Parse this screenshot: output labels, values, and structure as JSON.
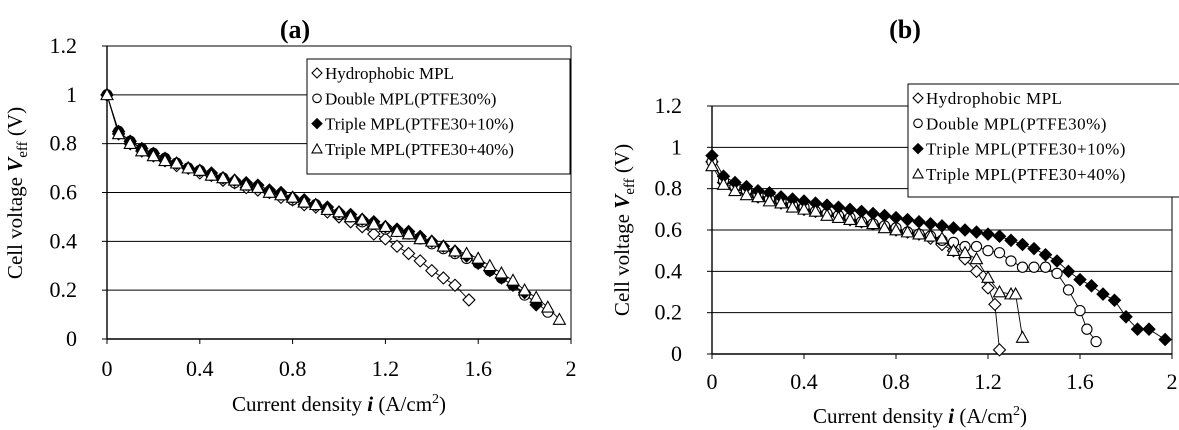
{
  "chart_data": [
    {
      "type": "line",
      "title": "(a)",
      "xlabel": "Current density i (A/cm²)",
      "ylabel": "Cell voltage V_eff (V)",
      "xlabel_parts": {
        "pre": "Current density ",
        "var": "i",
        "post": " (A/cm",
        "sup": "2",
        "end": ")"
      },
      "ylabel_parts": {
        "pre": "Cell voltage ",
        "var": "V",
        "sub": "eff",
        "post": " (V)"
      },
      "xlim": [
        0,
        2
      ],
      "ylim": [
        0,
        1.2
      ],
      "xticks": [
        "0",
        "0.4",
        "0.8",
        "1.2",
        "1.6",
        "2"
      ],
      "yticks": [
        "0",
        "0.2",
        "0.4",
        "0.6",
        "0.8",
        "1",
        "1.2"
      ],
      "grid": "horizontal",
      "legend_position": "top-right",
      "series": [
        {
          "name": "Hydrophobic MPL",
          "marker": "diamond-open",
          "x": [
            0,
            0.05,
            0.1,
            0.15,
            0.2,
            0.25,
            0.3,
            0.35,
            0.4,
            0.45,
            0.5,
            0.55,
            0.6,
            0.65,
            0.7,
            0.75,
            0.8,
            0.85,
            0.9,
            0.95,
            1.0,
            1.05,
            1.1,
            1.15,
            1.2,
            1.25,
            1.3,
            1.35,
            1.4,
            1.45,
            1.5,
            1.56
          ],
          "y": [
            1.0,
            0.84,
            0.8,
            0.77,
            0.75,
            0.73,
            0.71,
            0.7,
            0.68,
            0.67,
            0.65,
            0.64,
            0.62,
            0.61,
            0.6,
            0.58,
            0.57,
            0.55,
            0.54,
            0.52,
            0.5,
            0.48,
            0.46,
            0.43,
            0.41,
            0.38,
            0.35,
            0.32,
            0.28,
            0.25,
            0.22,
            0.16
          ]
        },
        {
          "name": "Double MPL(PTFE30%)",
          "marker": "circle-open",
          "x": [
            0,
            0.05,
            0.1,
            0.15,
            0.2,
            0.25,
            0.3,
            0.35,
            0.4,
            0.45,
            0.5,
            0.55,
            0.6,
            0.65,
            0.7,
            0.75,
            0.8,
            0.85,
            0.9,
            0.95,
            1.0,
            1.05,
            1.1,
            1.15,
            1.2,
            1.25,
            1.3,
            1.35,
            1.4,
            1.45,
            1.5,
            1.55,
            1.6,
            1.65,
            1.7,
            1.75,
            1.8,
            1.85,
            1.9
          ],
          "y": [
            1.0,
            0.85,
            0.81,
            0.78,
            0.76,
            0.74,
            0.72,
            0.7,
            0.69,
            0.67,
            0.66,
            0.64,
            0.63,
            0.62,
            0.6,
            0.59,
            0.57,
            0.56,
            0.55,
            0.53,
            0.51,
            0.5,
            0.48,
            0.47,
            0.45,
            0.44,
            0.43,
            0.41,
            0.39,
            0.37,
            0.35,
            0.33,
            0.31,
            0.28,
            0.25,
            0.22,
            0.18,
            0.15,
            0.11
          ]
        },
        {
          "name": "Triple MPL(PTFE30+10%)",
          "marker": "diamond-filled",
          "x": [
            0,
            0.05,
            0.1,
            0.15,
            0.2,
            0.25,
            0.3,
            0.35,
            0.4,
            0.45,
            0.5,
            0.55,
            0.6,
            0.65,
            0.7,
            0.75,
            0.8,
            0.85,
            0.9,
            0.95,
            1.0,
            1.05,
            1.1,
            1.15,
            1.2,
            1.25,
            1.3,
            1.35,
            1.4,
            1.45,
            1.5,
            1.55,
            1.6,
            1.65,
            1.7,
            1.75,
            1.8,
            1.85
          ],
          "y": [
            1.0,
            0.85,
            0.81,
            0.78,
            0.76,
            0.74,
            0.72,
            0.7,
            0.69,
            0.68,
            0.66,
            0.65,
            0.64,
            0.63,
            0.61,
            0.6,
            0.58,
            0.57,
            0.55,
            0.54,
            0.52,
            0.51,
            0.49,
            0.48,
            0.46,
            0.45,
            0.44,
            0.42,
            0.4,
            0.38,
            0.36,
            0.34,
            0.31,
            0.28,
            0.25,
            0.22,
            0.19,
            0.14
          ]
        },
        {
          "name": "Triple MPL(PTFE30+40%)",
          "marker": "triangle-open",
          "x": [
            0,
            0.05,
            0.1,
            0.15,
            0.2,
            0.25,
            0.3,
            0.35,
            0.4,
            0.45,
            0.5,
            0.55,
            0.6,
            0.65,
            0.7,
            0.75,
            0.8,
            0.85,
            0.9,
            0.95,
            1.0,
            1.05,
            1.1,
            1.15,
            1.2,
            1.25,
            1.3,
            1.35,
            1.4,
            1.45,
            1.5,
            1.55,
            1.6,
            1.65,
            1.7,
            1.75,
            1.8,
            1.85,
            1.9,
            1.95
          ],
          "y": [
            1.0,
            0.84,
            0.8,
            0.77,
            0.75,
            0.73,
            0.72,
            0.7,
            0.69,
            0.67,
            0.66,
            0.65,
            0.63,
            0.62,
            0.6,
            0.59,
            0.58,
            0.56,
            0.55,
            0.53,
            0.52,
            0.5,
            0.49,
            0.47,
            0.46,
            0.44,
            0.43,
            0.41,
            0.4,
            0.38,
            0.36,
            0.35,
            0.33,
            0.3,
            0.27,
            0.24,
            0.2,
            0.17,
            0.13,
            0.08
          ]
        }
      ]
    },
    {
      "type": "line",
      "title": "(b)",
      "xlabel": "Current density i (A/cm²)",
      "ylabel": "Cell voltage V_eff (V)",
      "xlabel_parts": {
        "pre": "Current density ",
        "var": "i",
        "post": " (A/cm",
        "sup": "2",
        "end": ")"
      },
      "ylabel_parts": {
        "pre": "Cell voltage ",
        "var": "V",
        "sub": "eff",
        "post": " (V)"
      },
      "xlim": [
        0,
        2
      ],
      "ylim": [
        0,
        1.2
      ],
      "xticks": [
        "0",
        "0.4",
        "0.8",
        "1.2",
        "1.6",
        "2"
      ],
      "yticks": [
        "0",
        "0.2",
        "0.4",
        "0.6",
        "0.8",
        "1",
        "1.2"
      ],
      "grid": "horizontal",
      "legend_position": "top-right",
      "series": [
        {
          "name": "Hydrophobic MPL",
          "marker": "diamond-open",
          "x": [
            0,
            0.05,
            0.1,
            0.15,
            0.2,
            0.25,
            0.3,
            0.35,
            0.4,
            0.45,
            0.5,
            0.55,
            0.6,
            0.65,
            0.7,
            0.75,
            0.8,
            0.85,
            0.9,
            0.95,
            1.0,
            1.05,
            1.1,
            1.15,
            1.2,
            1.23,
            1.25
          ],
          "y": [
            0.93,
            0.83,
            0.8,
            0.78,
            0.76,
            0.75,
            0.73,
            0.72,
            0.7,
            0.69,
            0.68,
            0.67,
            0.65,
            0.64,
            0.63,
            0.62,
            0.6,
            0.59,
            0.58,
            0.56,
            0.53,
            0.5,
            0.46,
            0.4,
            0.32,
            0.24,
            0.02
          ]
        },
        {
          "name": "Double MPL(PTFE30%)",
          "marker": "circle-open",
          "x": [
            0,
            0.05,
            0.1,
            0.15,
            0.2,
            0.25,
            0.3,
            0.35,
            0.4,
            0.45,
            0.5,
            0.55,
            0.6,
            0.65,
            0.7,
            0.75,
            0.8,
            0.85,
            0.9,
            0.95,
            1.0,
            1.05,
            1.1,
            1.15,
            1.2,
            1.25,
            1.3,
            1.35,
            1.4,
            1.45,
            1.5,
            1.55,
            1.6,
            1.63,
            1.67
          ],
          "y": [
            0.93,
            0.84,
            0.81,
            0.79,
            0.77,
            0.75,
            0.74,
            0.72,
            0.71,
            0.69,
            0.68,
            0.67,
            0.66,
            0.64,
            0.63,
            0.62,
            0.61,
            0.59,
            0.58,
            0.57,
            0.55,
            0.54,
            0.52,
            0.52,
            0.5,
            0.49,
            0.45,
            0.42,
            0.42,
            0.42,
            0.39,
            0.31,
            0.21,
            0.12,
            0.06
          ]
        },
        {
          "name": "Triple MPL(PTFE30+10%)",
          "marker": "diamond-filled",
          "x": [
            0,
            0.05,
            0.1,
            0.15,
            0.2,
            0.25,
            0.3,
            0.35,
            0.4,
            0.45,
            0.5,
            0.55,
            0.6,
            0.65,
            0.7,
            0.75,
            0.8,
            0.85,
            0.9,
            0.95,
            1.0,
            1.05,
            1.1,
            1.15,
            1.2,
            1.25,
            1.3,
            1.35,
            1.4,
            1.45,
            1.5,
            1.55,
            1.6,
            1.65,
            1.7,
            1.75,
            1.8,
            1.85,
            1.9,
            1.97
          ],
          "y": [
            0.96,
            0.86,
            0.83,
            0.81,
            0.79,
            0.78,
            0.76,
            0.75,
            0.74,
            0.73,
            0.72,
            0.71,
            0.7,
            0.69,
            0.68,
            0.67,
            0.66,
            0.65,
            0.64,
            0.63,
            0.62,
            0.61,
            0.6,
            0.59,
            0.58,
            0.57,
            0.55,
            0.53,
            0.51,
            0.48,
            0.45,
            0.4,
            0.36,
            0.33,
            0.29,
            0.26,
            0.18,
            0.12,
            0.12,
            0.07
          ]
        },
        {
          "name": "Triple MPL(PTFE30+40%)",
          "marker": "triangle-open",
          "x": [
            0,
            0.05,
            0.1,
            0.15,
            0.2,
            0.25,
            0.3,
            0.35,
            0.4,
            0.45,
            0.5,
            0.55,
            0.6,
            0.65,
            0.7,
            0.75,
            0.8,
            0.85,
            0.9,
            0.95,
            1.0,
            1.05,
            1.1,
            1.15,
            1.2,
            1.25,
            1.3,
            1.32,
            1.35
          ],
          "y": [
            0.91,
            0.82,
            0.79,
            0.77,
            0.76,
            0.74,
            0.73,
            0.71,
            0.7,
            0.69,
            0.67,
            0.66,
            0.65,
            0.64,
            0.63,
            0.61,
            0.6,
            0.59,
            0.58,
            0.57,
            0.56,
            0.5,
            0.49,
            0.46,
            0.37,
            0.3,
            0.29,
            0.29,
            0.08
          ]
        }
      ]
    }
  ]
}
